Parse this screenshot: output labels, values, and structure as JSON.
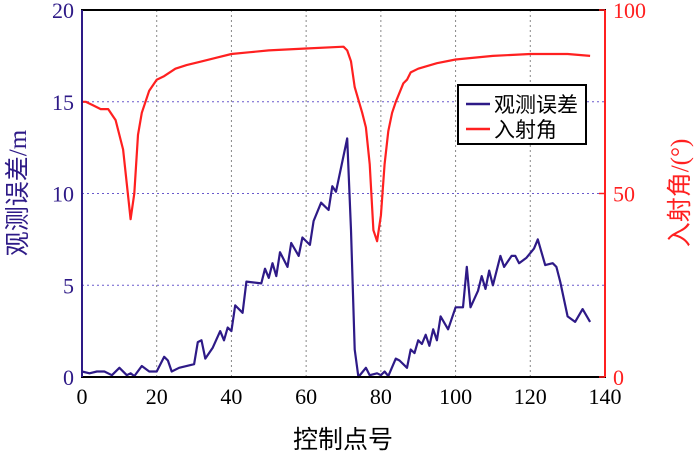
{
  "chart_data": {
    "type": "line",
    "xlabel": "控制点号",
    "ylabel_left": "观测误差/m",
    "ylabel_right": "入射角/(°)",
    "xlim": [
      0,
      140
    ],
    "ylim_left": [
      0,
      20
    ],
    "ylim_right": [
      0,
      100
    ],
    "xticks": [
      "0",
      "20",
      "40",
      "60",
      "80",
      "100",
      "120",
      "140"
    ],
    "yticks_left": [
      "0",
      "5",
      "10",
      "15",
      "20"
    ],
    "yticks_right": [
      "0",
      "50",
      "100"
    ],
    "grid": true,
    "legend_position": "top-right",
    "colors": {
      "error": "#2e1a87",
      "angle": "#ff2020",
      "right_axis": "#ff2020"
    },
    "series": [
      {
        "name": "观测误差",
        "axis": "left",
        "x": [
          0,
          2,
          4,
          6,
          8,
          10,
          12,
          13,
          14,
          16,
          18,
          20,
          22,
          23,
          24,
          26,
          30,
          31,
          32,
          33,
          35,
          37,
          38,
          39,
          40,
          41,
          43,
          44,
          48,
          49,
          50,
          51,
          52,
          53,
          55,
          56,
          58,
          59,
          61,
          62,
          64,
          66,
          67,
          68,
          71,
          72,
          73,
          74,
          76,
          77,
          79,
          80,
          81,
          82,
          84,
          85,
          87,
          88,
          89,
          90,
          91,
          92,
          93,
          94,
          95,
          96,
          98,
          100,
          102,
          103,
          104,
          106,
          107,
          108,
          109,
          110,
          112,
          113,
          115,
          116,
          117,
          119,
          121,
          122,
          124,
          126,
          127,
          128,
          130,
          132,
          134,
          136
        ],
        "y": [
          0.3,
          0.2,
          0.3,
          0.3,
          0.1,
          0.5,
          0.1,
          0.2,
          0.05,
          0.6,
          0.3,
          0.3,
          1.1,
          0.9,
          0.3,
          0.5,
          0.7,
          1.9,
          2.0,
          1.0,
          1.6,
          2.5,
          2.0,
          2.7,
          2.5,
          3.9,
          3.5,
          5.2,
          5.1,
          5.9,
          5.4,
          6.2,
          5.5,
          6.8,
          6.0,
          7.3,
          6.6,
          7.6,
          7.2,
          8.5,
          9.5,
          9.1,
          10.4,
          10.1,
          13.0,
          8.0,
          1.5,
          0.0,
          0.5,
          0.1,
          0.2,
          0.1,
          0.3,
          0.05,
          1.0,
          0.9,
          0.5,
          1.5,
          1.3,
          2.0,
          1.8,
          2.3,
          1.7,
          2.6,
          2.0,
          3.3,
          2.6,
          3.8,
          3.8,
          6.0,
          3.8,
          4.7,
          5.5,
          4.8,
          5.8,
          5.0,
          6.6,
          6.0,
          6.6,
          6.6,
          6.2,
          6.5,
          7.0,
          7.5,
          6.1,
          6.2,
          6.0,
          5.2,
          3.3,
          3.0,
          3.7,
          3.0
        ]
      },
      {
        "name": "入射角",
        "axis": "right",
        "x": [
          0,
          1,
          3,
          5,
          7,
          9,
          11,
          13,
          14,
          15,
          16,
          18,
          20,
          22,
          25,
          28,
          32,
          36,
          40,
          45,
          50,
          60,
          70,
          71,
          72,
          73,
          75,
          76,
          77,
          78,
          79,
          80,
          81,
          82,
          83,
          84,
          86,
          87,
          88,
          90,
          95,
          100,
          110,
          120,
          130,
          136
        ],
        "y": [
          75,
          75,
          74,
          73,
          73,
          70,
          62,
          43,
          50,
          66,
          72,
          78,
          81,
          82,
          84,
          85,
          86,
          87,
          88,
          88.5,
          89,
          89.5,
          90,
          89,
          86,
          79,
          72,
          68,
          58,
          40,
          37,
          44,
          58,
          67,
          72,
          75,
          80,
          81,
          83,
          84,
          85.5,
          86.5,
          87.5,
          88,
          88,
          87.5
        ]
      }
    ]
  }
}
